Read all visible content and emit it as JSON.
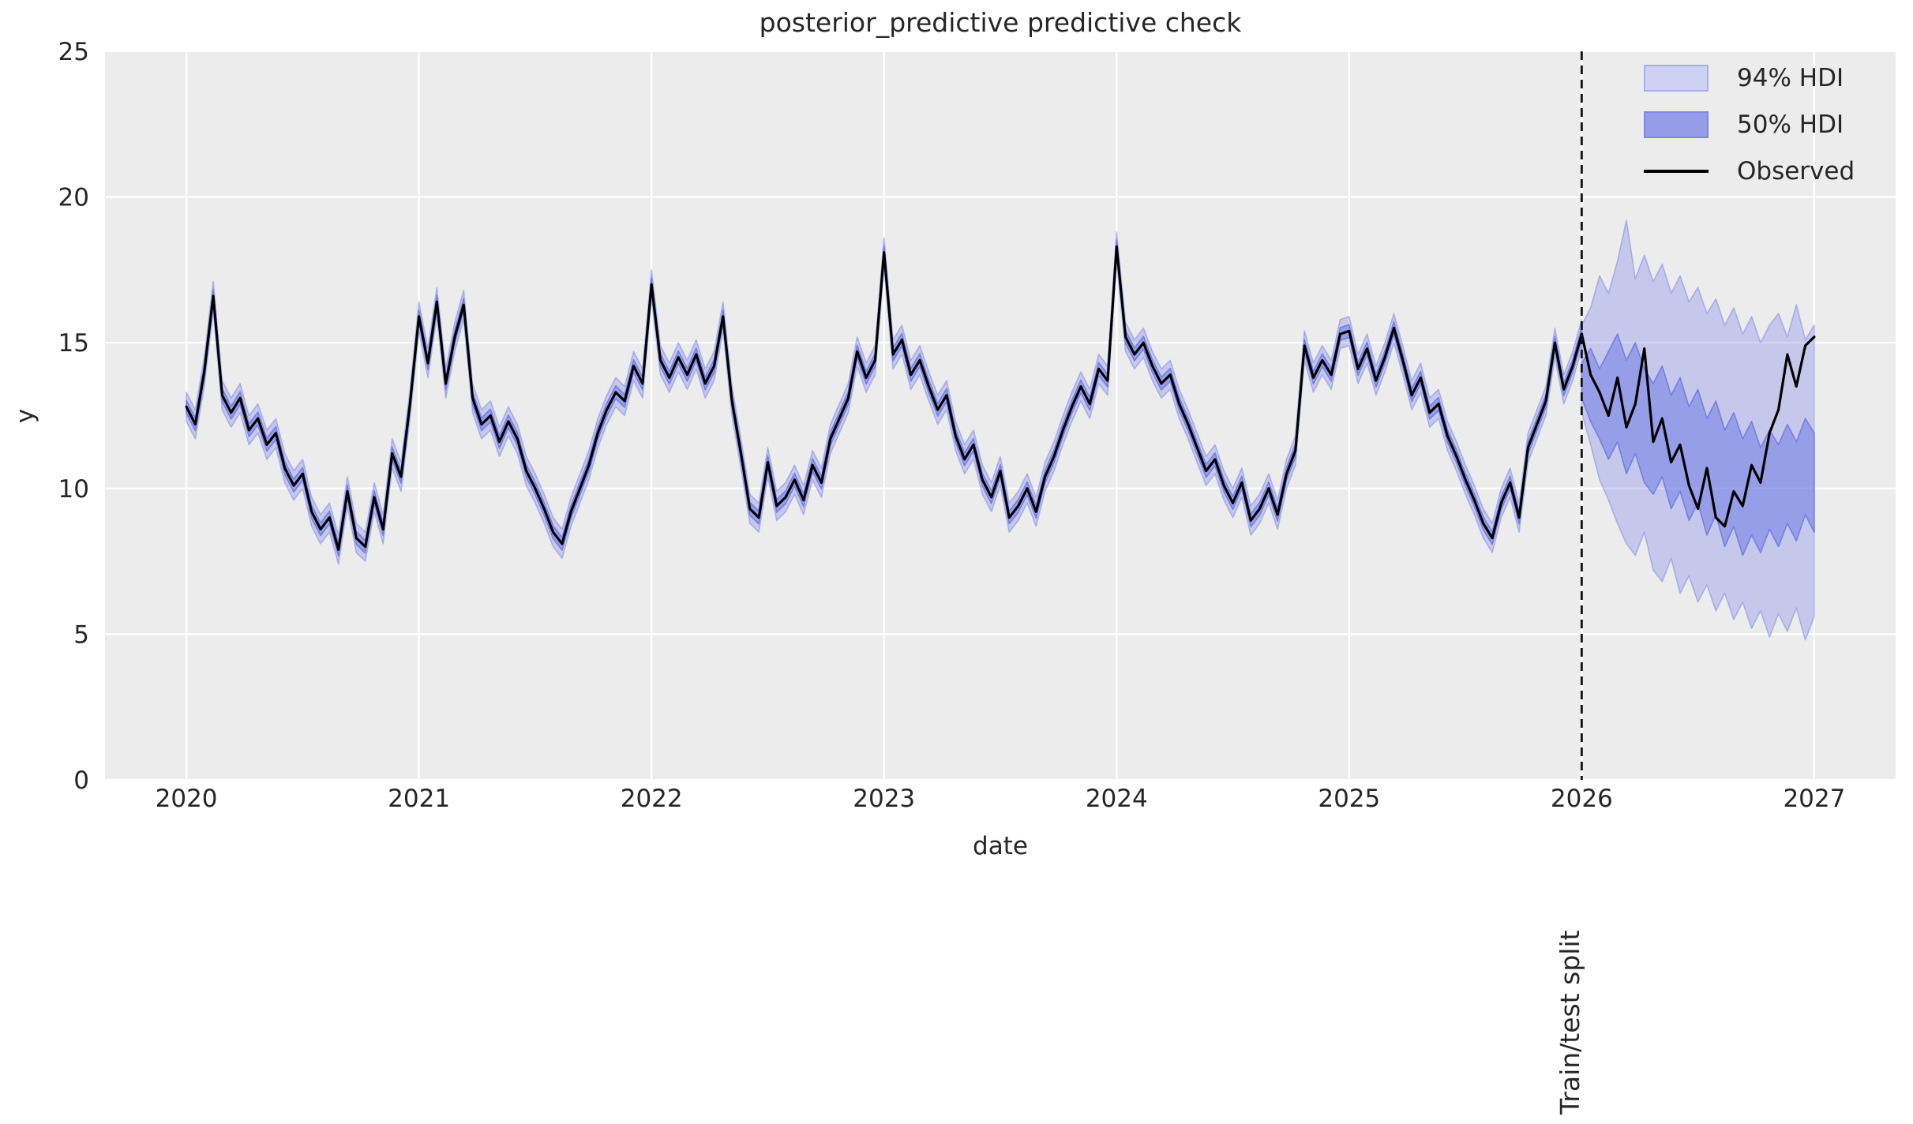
{
  "chart_data": {
    "type": "line",
    "title": "posterior_predictive predictive check",
    "xlabel": "date",
    "ylabel": "y",
    "xlim": [
      2019.65,
      2027.35
    ],
    "ylim": [
      0,
      25
    ],
    "grid": true,
    "x_ticks": [
      2020,
      2021,
      2022,
      2023,
      2024,
      2025,
      2026,
      2027
    ],
    "x_tick_labels": [
      "2020",
      "2021",
      "2022",
      "2023",
      "2024",
      "2025",
      "2026",
      "2027"
    ],
    "y_ticks": [
      0,
      5,
      10,
      15,
      20,
      25
    ],
    "y_tick_labels": [
      "0",
      "5",
      "10",
      "15",
      "20",
      "25"
    ],
    "split_x": 2026.0,
    "split_label": "Train/test split",
    "legend_position": "upper right",
    "legend": [
      {
        "label": "94% HDI",
        "type": "band",
        "fill": "#cdd1f4",
        "edge": "#a9afee"
      },
      {
        "label": "50% HDI",
        "type": "band",
        "fill": "#959de9",
        "edge": "#7d87e6"
      },
      {
        "label": "Observed",
        "type": "line",
        "color": "#000000"
      }
    ],
    "colors": {
      "axes_background": "#ececec",
      "gridline": "#ffffff",
      "observed_line": "#000000",
      "hdi94_fill": "rgba(127,136,232,0.35)",
      "hdi94_edge": "rgba(128,137,232,0.55)",
      "hdi50_fill": "rgba(113,123,230,0.55)",
      "hdi50_edge": "rgba(104,114,228,0.8)",
      "split_line": "#111111",
      "text": "#262626"
    },
    "observed": {
      "x_start": 2020.0,
      "x_step": 0.0384615,
      "values": [
        12.8,
        12.2,
        14.0,
        16.6,
        13.2,
        12.6,
        13.1,
        12.0,
        12.4,
        11.5,
        11.9,
        10.7,
        10.1,
        10.5,
        9.2,
        8.6,
        9.0,
        7.9,
        9.9,
        8.3,
        8.0,
        9.7,
        8.6,
        11.2,
        10.4,
        12.9,
        15.9,
        14.3,
        16.4,
        13.6,
        15.2,
        16.3,
        13.1,
        12.2,
        12.5,
        11.6,
        12.3,
        11.7,
        10.6,
        10.0,
        9.3,
        8.5,
        8.1,
        9.2,
        10.0,
        10.8,
        11.9,
        12.7,
        13.3,
        13.0,
        14.2,
        13.6,
        17.0,
        14.4,
        13.8,
        14.5,
        13.9,
        14.6,
        13.6,
        14.2,
        15.9,
        13.0,
        11.2,
        9.3,
        9.0,
        10.9,
        9.4,
        9.7,
        10.3,
        9.6,
        10.8,
        10.2,
        11.7,
        12.4,
        13.1,
        14.7,
        13.8,
        14.4,
        18.1,
        14.6,
        15.1,
        13.9,
        14.4,
        13.5,
        12.7,
        13.2,
        11.8,
        11.0,
        11.5,
        10.3,
        9.7,
        10.6,
        9.0,
        9.4,
        10.0,
        9.2,
        10.4,
        11.1,
        12.0,
        12.8,
        13.5,
        12.9,
        14.1,
        13.7,
        18.3,
        15.2,
        14.6,
        15.0,
        14.2,
        13.6,
        13.9,
        12.9,
        12.2,
        11.4,
        10.6,
        11.0,
        10.1,
        9.5,
        10.2,
        8.9,
        9.3,
        10.0,
        9.1,
        10.5,
        11.3,
        14.9,
        13.8,
        14.4,
        13.9,
        15.3,
        15.4,
        14.1,
        14.8,
        13.7,
        14.5,
        15.5,
        14.4,
        13.2,
        13.8,
        12.6,
        12.9,
        11.8,
        11.1,
        10.3,
        9.6,
        8.8,
        8.3,
        9.5,
        10.2,
        9.0,
        11.4,
        12.2,
        13.0,
        15.0,
        13.4,
        14.2,
        15.3,
        13.9,
        13.3,
        12.5,
        13.8,
        12.1,
        12.9,
        14.8,
        11.6,
        12.4,
        10.9,
        11.5,
        10.1,
        9.3,
        10.7,
        9.0,
        8.7,
        9.9,
        9.4,
        10.8,
        10.2,
        11.9,
        12.7,
        14.6,
        13.5,
        14.9,
        15.2
      ]
    },
    "train_bands": {
      "x_end": 2026.0,
      "hdi94_halfwidth": 0.5,
      "hdi50_halfwidth": 0.22
    },
    "test_bands": {
      "x_start": 2026.0,
      "x_step": 0.0384615,
      "hdi94_upper": [
        15.6,
        16.2,
        17.3,
        16.7,
        17.8,
        19.2,
        17.2,
        18.0,
        17.1,
        17.7,
        16.7,
        17.3,
        16.4,
        16.9,
        16.0,
        16.5,
        15.6,
        16.2,
        15.3,
        15.9,
        15.0,
        15.6,
        16.0,
        15.2,
        16.3,
        15.1,
        15.6
      ],
      "hdi94_lower": [
        12.6,
        11.5,
        10.3,
        9.6,
        8.8,
        8.1,
        7.7,
        8.5,
        7.2,
        6.8,
        7.6,
        6.4,
        7.0,
        6.1,
        6.7,
        5.8,
        6.4,
        5.5,
        6.1,
        5.2,
        5.8,
        4.9,
        5.7,
        5.1,
        5.9,
        4.8,
        5.6
      ],
      "hdi50_upper": [
        14.3,
        14.8,
        14.1,
        14.7,
        15.3,
        14.4,
        15.0,
        14.1,
        13.6,
        14.2,
        13.2,
        13.8,
        12.8,
        13.4,
        12.4,
        13.0,
        12.0,
        12.6,
        11.7,
        12.3,
        11.4,
        12.0,
        11.5,
        12.2,
        11.6,
        12.4,
        11.9
      ],
      "hdi50_lower": [
        13.1,
        12.3,
        11.7,
        11.0,
        11.6,
        10.5,
        11.2,
        10.2,
        9.8,
        10.4,
        9.3,
        9.9,
        8.9,
        9.5,
        8.4,
        9.1,
        8.0,
        8.7,
        7.7,
        8.4,
        7.8,
        8.6,
        8.0,
        8.8,
        8.2,
        9.1,
        8.5
      ]
    }
  }
}
